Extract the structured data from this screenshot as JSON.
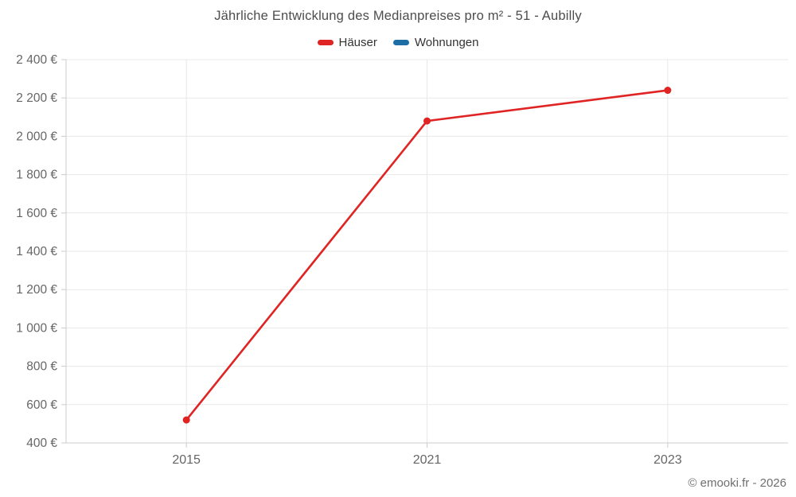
{
  "page": {
    "copyright": "© emooki.fr - 2026"
  },
  "chart_data": {
    "type": "line",
    "title": "Jährliche Entwicklung des Medianpreises pro m² - 51 - Aubilly",
    "categories": [
      "2015",
      "2021",
      "2023"
    ],
    "series": [
      {
        "name": "Häuser",
        "color": "#e02424",
        "values": [
          520,
          2080,
          2240
        ]
      },
      {
        "name": "Wohnungen",
        "color": "#1c6ea4",
        "values": []
      }
    ],
    "xlabel": "",
    "ylabel": "",
    "y_axis": {
      "min": 400,
      "max": 2400,
      "step": 200,
      "tick_suffix": " €",
      "thousands_separator": " "
    },
    "grid": true,
    "legend_position": "top",
    "colors": {
      "grid_line": "#e8e8e8",
      "axis_line": "#cccccc",
      "tick_label": "#666666",
      "title_text": "#4d4d4d",
      "legend_text": "#333333"
    }
  }
}
